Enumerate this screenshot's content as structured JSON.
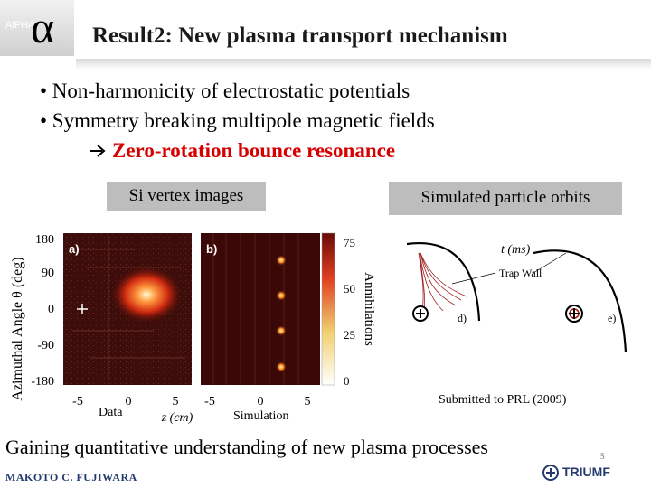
{
  "logo": {
    "small_text": "AlPHA",
    "alpha_symbol": "α"
  },
  "title": "Result2: New plasma transport mechanism",
  "bullets": [
    "• Non-harmonicity of  electrostatic potentials",
    "• Symmetry breaking multipole magnetic fields"
  ],
  "arrow_line": "Zero-rotation bounce resonance",
  "captions": {
    "si": "Si vertex images",
    "sim": "Simulated particle orbits"
  },
  "figure_left": {
    "ylabel": "Azimuthal Angle θ (deg)",
    "yticks": [
      "180",
      "90",
      "0",
      "-90",
      "-180"
    ],
    "panel_a": "a)",
    "panel_b": "b)",
    "xticks_a": [
      "-5",
      "0",
      "5"
    ],
    "xticks_b": [
      "-5",
      "0",
      "5"
    ],
    "xlabel": "z (cm)",
    "colorbar_ticks": [
      "75",
      "50",
      "25",
      "0"
    ],
    "colorbar_label": "Annihilations",
    "data_label": "Data",
    "sim_label": "Simulation"
  },
  "figure_right": {
    "t_label": "t (ms)",
    "trap_wall": "Trap Wall",
    "panel_d": "d)",
    "panel_e": "e)"
  },
  "submitted": "Submitted to PRL (2009)",
  "bottom_line": "Gaining quantitative understanding of  new plasma processes",
  "author": "MAKOTO C. FUJIWARA",
  "triumf": "TRIUMF",
  "page_number": "5",
  "colors": {
    "title": "#1a1a1a",
    "accent_red": "#d60000",
    "caption_bg": "#bdbdbd",
    "author_blue": "#243a6e"
  }
}
